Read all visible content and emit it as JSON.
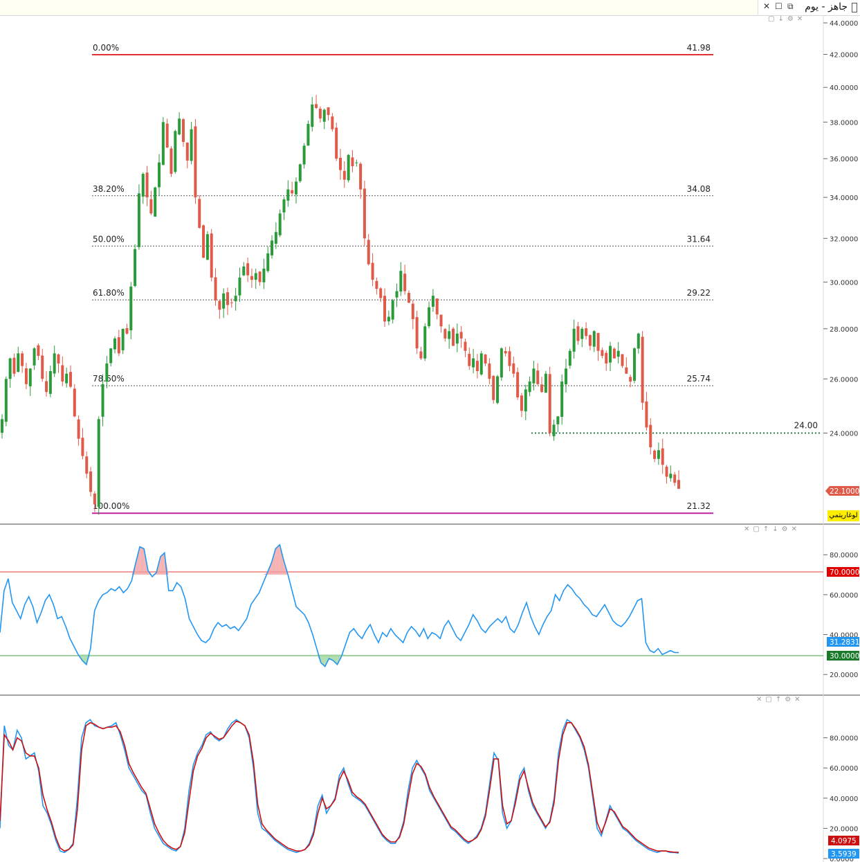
{
  "window": {
    "title": "جاهز - يوم",
    "controls": [
      "✕",
      "☐",
      "⧉"
    ]
  },
  "price_panel": {
    "scale_label": "لوغاريتمي",
    "last_price": "22.1000",
    "horizontal_level": "24.00",
    "axis_ticks": [
      "44.0000",
      "42.0000",
      "40.0000",
      "38.0000",
      "36.0000",
      "34.0000",
      "32.0000",
      "30.0000",
      "28.0000",
      "26.0000",
      "24.0000"
    ],
    "fib_levels": [
      {
        "pct": "0.00%",
        "value": "41.98",
        "color": "#e03030"
      },
      {
        "pct": "38.20%",
        "value": "34.08",
        "color": "#555555"
      },
      {
        "pct": "50.00%",
        "value": "31.64",
        "color": "#555555"
      },
      {
        "pct": "61.80%",
        "value": "29.22",
        "color": "#555555"
      },
      {
        "pct": "78.60%",
        "value": "25.74",
        "color": "#555555"
      },
      {
        "pct": "100.00%",
        "value": "21.32",
        "color": "#c020a0"
      }
    ]
  },
  "rsi_panel": {
    "upper_level": "70.0000",
    "lower_level": "30.0000",
    "current": "31.2831",
    "axis_ticks": [
      "80.0000",
      "60.0000",
      "40.0000",
      "20.0000"
    ]
  },
  "stoch_panel": {
    "k_value": "3.5939",
    "d_value": "4.0975",
    "axis_ticks": [
      "80.0000",
      "60.0000",
      "40.0000",
      "20.0000",
      "0.0000"
    ]
  },
  "colors": {
    "up": "#2a9a3a",
    "down": "#e05a4a",
    "rsi_line": "#2196f3",
    "overbought": "#e53935",
    "oversold": "#43a047",
    "stoch_k": "#2196f3",
    "stoch_d": "#cc1010"
  },
  "chart_data": [
    {
      "type": "candlestick",
      "scale": "log",
      "ylim": [
        21.0,
        44.5
      ],
      "fib_retracement": {
        "high": 41.98,
        "low": 21.32
      },
      "level": 24.0,
      "last": 22.1,
      "closes": [
        24.5,
        26.0,
        26.8,
        26.2,
        27.0,
        26.5,
        25.8,
        26.4,
        27.2,
        26.9,
        26.0,
        25.5,
        26.3,
        27.0,
        26.6,
        25.9,
        26.2,
        25.7,
        24.6,
        23.8,
        23.2,
        22.6,
        22.0,
        21.6,
        24.5,
        25.8,
        26.6,
        27.2,
        27.6,
        27.0,
        28.0,
        27.8,
        29.8,
        31.5,
        34.2,
        35.2,
        34.0,
        33.2,
        34.5,
        35.8,
        38.0,
        36.6,
        35.2,
        37.5,
        38.2,
        36.9,
        35.9,
        37.6,
        34.0,
        32.5,
        31.1,
        32.2,
        30.2,
        29.2,
        28.8,
        29.5,
        29.0,
        29.1,
        29.4,
        30.2,
        30.7,
        30.3,
        30.1,
        30.4,
        30.0,
        30.6,
        31.3,
        31.9,
        32.3,
        33.2,
        33.9,
        34.4,
        34.2,
        34.8,
        35.7,
        36.7,
        37.9,
        39.0,
        38.8,
        38.2,
        38.7,
        38.4,
        37.6,
        36.0,
        35.4,
        34.9,
        36.2,
        35.6,
        35.8,
        34.4,
        32.0,
        30.8,
        30.1,
        29.7,
        29.3,
        28.3,
        28.5,
        29.2,
        29.6,
        30.5,
        29.6,
        29.1,
        28.4,
        27.2,
        26.8,
        28.1,
        28.9,
        29.4,
        28.6,
        28.1,
        27.6,
        27.9,
        27.3,
        27.8,
        27.6,
        27.1,
        26.5,
        26.8,
        26.3,
        27.0,
        26.6,
        26.0,
        25.2,
        26.1,
        27.2,
        27.0,
        26.5,
        26.2,
        25.3,
        24.8,
        25.6,
        25.9,
        26.4,
        25.8,
        25.5,
        26.2,
        24.0,
        24.3,
        24.6,
        25.9,
        26.4,
        27.1,
        28.0,
        27.5,
        28.0,
        27.7,
        27.3,
        27.9,
        27.1,
        26.9,
        26.6,
        27.3,
        26.8,
        27.1,
        26.5,
        26.2,
        25.9,
        27.2,
        27.8,
        25.1,
        24.2,
        23.5,
        23.1,
        23.4,
        22.9,
        22.5,
        22.6,
        22.3,
        22.1
      ],
      "x_labels": []
    },
    {
      "type": "line",
      "name": "RSI",
      "ylim": [
        10,
        95
      ],
      "levels": [
        70,
        30
      ],
      "values": [
        41,
        62,
        68,
        56,
        52,
        48,
        55,
        59,
        54,
        46,
        51,
        57,
        60,
        55,
        48,
        49,
        44,
        38,
        34,
        30,
        27,
        25,
        33,
        52,
        57,
        60,
        61,
        63,
        62,
        64,
        61,
        63,
        67,
        76,
        84,
        83,
        72,
        69,
        71,
        79,
        81,
        62,
        62,
        66,
        64,
        58,
        48,
        44,
        40,
        37,
        36,
        38,
        43,
        46,
        44,
        45,
        43,
        44,
        42,
        45,
        48,
        55,
        58,
        61,
        66,
        71,
        76,
        83,
        85,
        77,
        70,
        62,
        54,
        52,
        50,
        46,
        40,
        33,
        26,
        24,
        28,
        27,
        25,
        29,
        35,
        41,
        43,
        40,
        38,
        42,
        45,
        40,
        36,
        41,
        39,
        43,
        40,
        38,
        36,
        41,
        44,
        42,
        39,
        43,
        38,
        41,
        40,
        38,
        44,
        47,
        43,
        39,
        37,
        41,
        45,
        50,
        47,
        43,
        41,
        44,
        46,
        48,
        46,
        49,
        43,
        41,
        45,
        51,
        56,
        49,
        44,
        40,
        45,
        49,
        52,
        60,
        57,
        62,
        65,
        63,
        60,
        58,
        55,
        53,
        50,
        49,
        52,
        55,
        51,
        47,
        45,
        44,
        46,
        49,
        53,
        57,
        58,
        36,
        32,
        31,
        33,
        30,
        31,
        32,
        31,
        31
      ]
    },
    {
      "type": "line",
      "name": "Stochastic",
      "ylim": [
        0,
        100
      ],
      "k": [
        20,
        88,
        75,
        72,
        85,
        80,
        66,
        68,
        70,
        58,
        35,
        30,
        22,
        12,
        5,
        4,
        6,
        10,
        40,
        80,
        90,
        92,
        88,
        87,
        86,
        87,
        88,
        90,
        82,
        72,
        60,
        55,
        50,
        45,
        42,
        30,
        20,
        15,
        10,
        8,
        6,
        5,
        8,
        20,
        45,
        62,
        70,
        75,
        82,
        84,
        80,
        78,
        80,
        86,
        90,
        92,
        90,
        88,
        80,
        60,
        30,
        20,
        18,
        15,
        12,
        10,
        8,
        6,
        5,
        4,
        5,
        6,
        10,
        18,
        35,
        42,
        30,
        35,
        40,
        55,
        60,
        50,
        42,
        40,
        38,
        35,
        30,
        25,
        20,
        15,
        12,
        10,
        10,
        15,
        25,
        45,
        60,
        65,
        60,
        55,
        45,
        40,
        35,
        30,
        25,
        20,
        18,
        15,
        12,
        10,
        12,
        15,
        20,
        30,
        50,
        70,
        65,
        30,
        20,
        25,
        40,
        55,
        60,
        45,
        35,
        30,
        25,
        20,
        25,
        40,
        70,
        85,
        92,
        90,
        85,
        80,
        72,
        60,
        40,
        20,
        15,
        25,
        35,
        30,
        25,
        20,
        18,
        15,
        12,
        10,
        8,
        6,
        5,
        4,
        5,
        5,
        4,
        4,
        3.6
      ],
      "d": [
        25,
        82,
        78,
        72,
        80,
        78,
        70,
        68,
        68,
        60,
        42,
        32,
        24,
        14,
        7,
        5,
        6,
        9,
        32,
        72,
        88,
        90,
        89,
        87,
        86,
        87,
        87,
        88,
        84,
        75,
        63,
        57,
        52,
        47,
        43,
        33,
        23,
        17,
        12,
        9,
        7,
        6,
        8,
        17,
        38,
        58,
        68,
        73,
        80,
        83,
        81,
        79,
        80,
        84,
        88,
        91,
        90,
        88,
        82,
        64,
        36,
        23,
        19,
        16,
        13,
        11,
        9,
        7,
        6,
        5,
        5,
        6,
        9,
        16,
        30,
        40,
        33,
        35,
        39,
        52,
        58,
        52,
        44,
        41,
        39,
        36,
        31,
        26,
        21,
        16,
        13,
        11,
        11,
        14,
        23,
        40,
        56,
        63,
        61,
        56,
        47,
        41,
        36,
        31,
        26,
        21,
        19,
        16,
        13,
        11,
        12,
        14,
        19,
        28,
        46,
        66,
        66,
        35,
        23,
        25,
        37,
        52,
        58,
        47,
        37,
        31,
        26,
        21,
        24,
        37,
        65,
        82,
        90,
        90,
        86,
        81,
        74,
        62,
        43,
        24,
        17,
        24,
        33,
        31,
        26,
        21,
        19,
        16,
        13,
        11,
        9,
        7,
        6,
        5,
        5,
        5,
        4.5,
        4.2,
        4.1
      ]
    }
  ]
}
